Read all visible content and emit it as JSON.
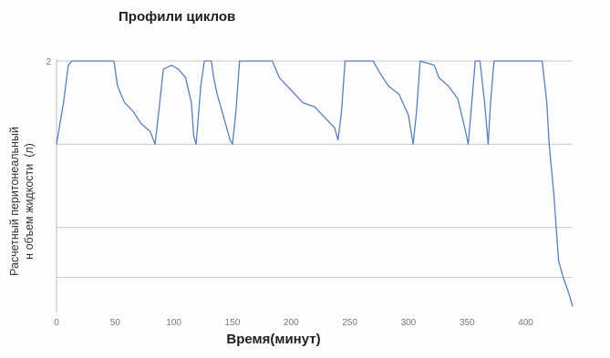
{
  "chart_data": {
    "type": "line",
    "title": "Профили циклов",
    "xlabel": "Время(минут)",
    "ylabel": "Расчетный перитонеальный\nн объем жидкости  (л)",
    "xlim": [
      0,
      440
    ],
    "ylim": [
      0,
      3
    ],
    "x_ticks": [
      0,
      50,
      100,
      150,
      200,
      250,
      300,
      350,
      400
    ],
    "x_tick_labels": [
      "0",
      "50",
      "100",
      "150",
      "200",
      "250",
      "300",
      "350",
      "400"
    ],
    "y_tick_labels": [
      "2"
    ],
    "grid": true,
    "gridlines_y": [
      0.4,
      1.0,
      2.0,
      3.0
    ],
    "legend": "none",
    "line_color": "#5b7fb8",
    "series": [
      {
        "x": [
          0,
          6,
          10,
          13,
          49,
          52,
          58,
          65,
          72,
          80,
          84,
          88,
          91,
          98,
          104,
          110,
          115,
          117,
          119,
          123,
          126,
          132,
          134,
          137,
          141,
          145,
          148,
          150,
          153,
          156,
          184,
          190,
          200,
          210,
          220,
          230,
          237,
          240,
          243,
          246,
          270,
          276,
          283,
          292,
          300,
          304,
          307,
          310,
          322,
          326,
          334,
          342,
          348,
          351,
          354,
          357,
          361,
          365,
          368,
          370,
          373,
          414,
          418,
          420,
          424,
          428,
          432,
          437,
          440
        ],
        "y": [
          2.0,
          2.5,
          2.95,
          3.0,
          3.0,
          2.7,
          2.5,
          2.4,
          2.25,
          2.15,
          2.0,
          2.5,
          2.9,
          2.95,
          2.9,
          2.8,
          2.5,
          2.1,
          2.0,
          2.7,
          3.0,
          3.0,
          2.8,
          2.6,
          2.4,
          2.2,
          2.05,
          2.0,
          2.4,
          3.0,
          3.0,
          2.8,
          2.65,
          2.5,
          2.45,
          2.3,
          2.2,
          2.05,
          2.4,
          3.0,
          3.0,
          2.85,
          2.7,
          2.6,
          2.35,
          2.0,
          2.4,
          3.0,
          2.95,
          2.8,
          2.7,
          2.55,
          2.2,
          2.0,
          2.5,
          3.0,
          3.0,
          2.5,
          2.0,
          2.5,
          3.0,
          3.0,
          2.5,
          2.0,
          1.4,
          0.6,
          0.4,
          0.2,
          0.05
        ]
      }
    ]
  }
}
